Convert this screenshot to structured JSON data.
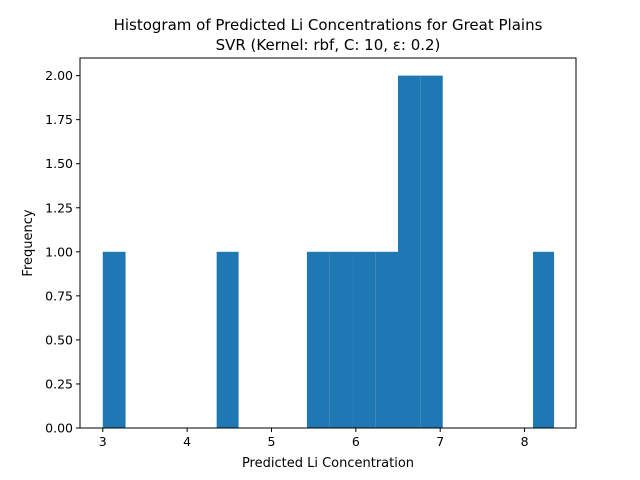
{
  "chart_data": {
    "type": "bar",
    "title": "Histogram of Predicted Li Concentrations for Great Plains",
    "subtitle": "SVR (Kernel: rbf, C: 10, ε: 0.2)",
    "xlabel": "Predicted Li Concentration",
    "ylabel": "Frequency",
    "xlim": [
      2.73,
      8.61
    ],
    "ylim": [
      0,
      2.1
    ],
    "x_ticks": [
      "3",
      "4",
      "5",
      "6",
      "7",
      "8"
    ],
    "y_ticks": [
      "0.00",
      "0.25",
      "0.50",
      "0.75",
      "1.00",
      "1.25",
      "1.50",
      "1.75",
      "2.00"
    ],
    "bins": [
      {
        "x0": 3.0,
        "x1": 3.27,
        "count": 1
      },
      {
        "x0": 4.35,
        "x1": 4.61,
        "count": 1
      },
      {
        "x0": 5.42,
        "x1": 5.69,
        "count": 1
      },
      {
        "x0": 5.69,
        "x1": 5.96,
        "count": 1
      },
      {
        "x0": 5.96,
        "x1": 6.23,
        "count": 1
      },
      {
        "x0": 6.23,
        "x1": 6.5,
        "count": 1
      },
      {
        "x0": 6.5,
        "x1": 6.77,
        "count": 2
      },
      {
        "x0": 6.77,
        "x1": 7.03,
        "count": 2
      },
      {
        "x0": 8.1,
        "x1": 8.35,
        "count": 1
      }
    ],
    "bar_color": "#1f77b4",
    "grid": false,
    "legend": "none"
  }
}
